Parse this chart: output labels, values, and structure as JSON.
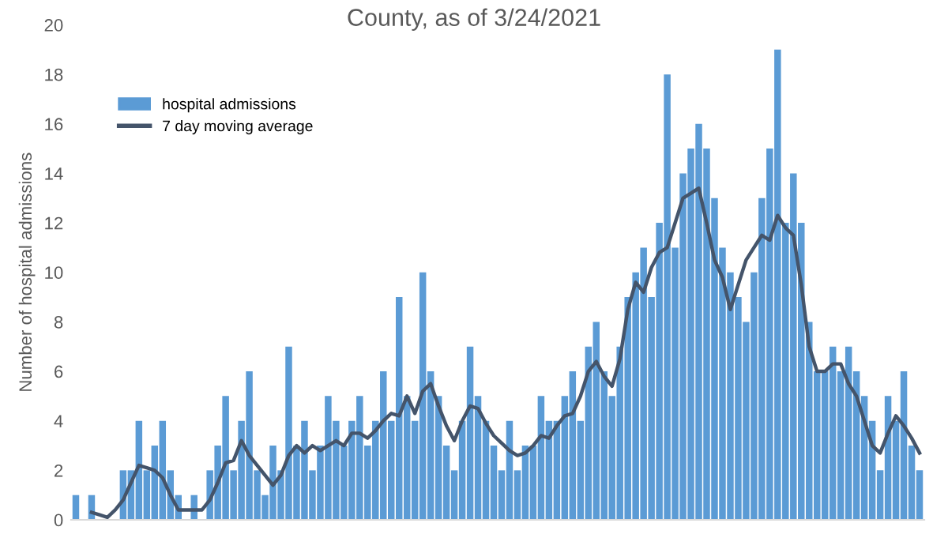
{
  "chart_data": {
    "type": "bar",
    "title": "County, as of 3/24/2021",
    "ylabel": "Number of hospital admissions",
    "categories": [
      null,
      null,
      null,
      null,
      null,
      null,
      null,
      null,
      null,
      null,
      null,
      null,
      null,
      null,
      null,
      null,
      null,
      null,
      null,
      null,
      null,
      null,
      null,
      null,
      null,
      null,
      null,
      null,
      null,
      null,
      null,
      null,
      null,
      null,
      null,
      null,
      null,
      null,
      null,
      null,
      null,
      null,
      null,
      null,
      null,
      null,
      null,
      null,
      null,
      null,
      null,
      null,
      null,
      null,
      null,
      null,
      null,
      null,
      null,
      null,
      null,
      null,
      null,
      null,
      null,
      null,
      null,
      null,
      null,
      null,
      null,
      null,
      null,
      null,
      null,
      null,
      null,
      null,
      null,
      null,
      null,
      null,
      null,
      null,
      null,
      null,
      null,
      null,
      null,
      null,
      null,
      null,
      null,
      null,
      null,
      null,
      null,
      null,
      null,
      null,
      null,
      null,
      null,
      null,
      null,
      null,
      null,
      null
    ],
    "series": [
      {
        "name": "hospital admissions",
        "color": "#5b9bd5",
        "values": [
          1,
          0,
          1,
          0,
          0,
          0,
          2,
          2,
          4,
          2,
          3,
          4,
          2,
          1,
          0,
          1,
          0,
          2,
          3,
          5,
          2,
          4,
          6,
          2,
          1,
          3,
          2,
          7,
          3,
          4,
          2,
          3,
          5,
          4,
          3,
          4,
          5,
          3,
          4,
          6,
          4,
          9,
          5,
          4,
          10,
          6,
          5,
          3,
          2,
          4,
          7,
          5,
          4,
          3,
          2,
          4,
          2,
          3,
          3,
          5,
          4,
          4,
          5,
          6,
          4,
          7,
          8,
          6,
          5,
          7,
          9,
          10,
          11,
          9,
          12,
          18,
          11,
          14,
          15,
          16,
          15,
          13,
          11,
          10,
          9,
          8,
          10,
          13,
          15,
          19,
          12,
          14,
          12,
          8,
          6,
          6,
          7,
          6,
          7,
          6,
          5,
          4,
          2,
          5,
          4,
          6,
          3,
          2
        ]
      },
      {
        "name": "7 day moving average",
        "type": "line",
        "color": "#44546a",
        "values": [
          null,
          null,
          0.3,
          0.2,
          0.1,
          0.4,
          0.8,
          1.5,
          2.2,
          2.1,
          2.0,
          1.7,
          1.0,
          0.4,
          0.4,
          0.4,
          0.4,
          0.8,
          1.5,
          2.3,
          2.4,
          3.2,
          2.6,
          2.2,
          1.8,
          1.4,
          1.8,
          2.6,
          3.0,
          2.7,
          3.0,
          2.8,
          3.0,
          3.2,
          3.0,
          3.5,
          3.5,
          3.3,
          3.6,
          4.0,
          4.3,
          4.2,
          5.0,
          4.3,
          5.2,
          5.5,
          4.6,
          3.8,
          3.2,
          4.0,
          4.6,
          4.5,
          3.9,
          3.4,
          3.1,
          2.8,
          2.6,
          2.7,
          3.0,
          3.4,
          3.3,
          3.8,
          4.2,
          4.3,
          5.0,
          6.0,
          6.4,
          5.8,
          5.4,
          6.5,
          8.5,
          9.6,
          9.2,
          10.2,
          10.8,
          11.0,
          12.0,
          13.0,
          13.2,
          13.4,
          12.0,
          10.5,
          9.8,
          8.5,
          9.5,
          10.5,
          11.0,
          11.5,
          11.3,
          12.3,
          11.8,
          11.5,
          9.5,
          7.0,
          6.0,
          6.0,
          6.3,
          6.3,
          5.5,
          5.0,
          4.0,
          3.0,
          2.7,
          3.5,
          4.2,
          3.8,
          3.3,
          2.7
        ]
      }
    ],
    "ylim": [
      0,
      20
    ],
    "yticks": [
      0,
      2,
      4,
      6,
      8,
      10,
      12,
      14,
      16,
      18,
      20
    ],
    "tick_labels": "y",
    "grid": false,
    "legend": "top left",
    "marker": "none",
    "line_style": "solid"
  }
}
